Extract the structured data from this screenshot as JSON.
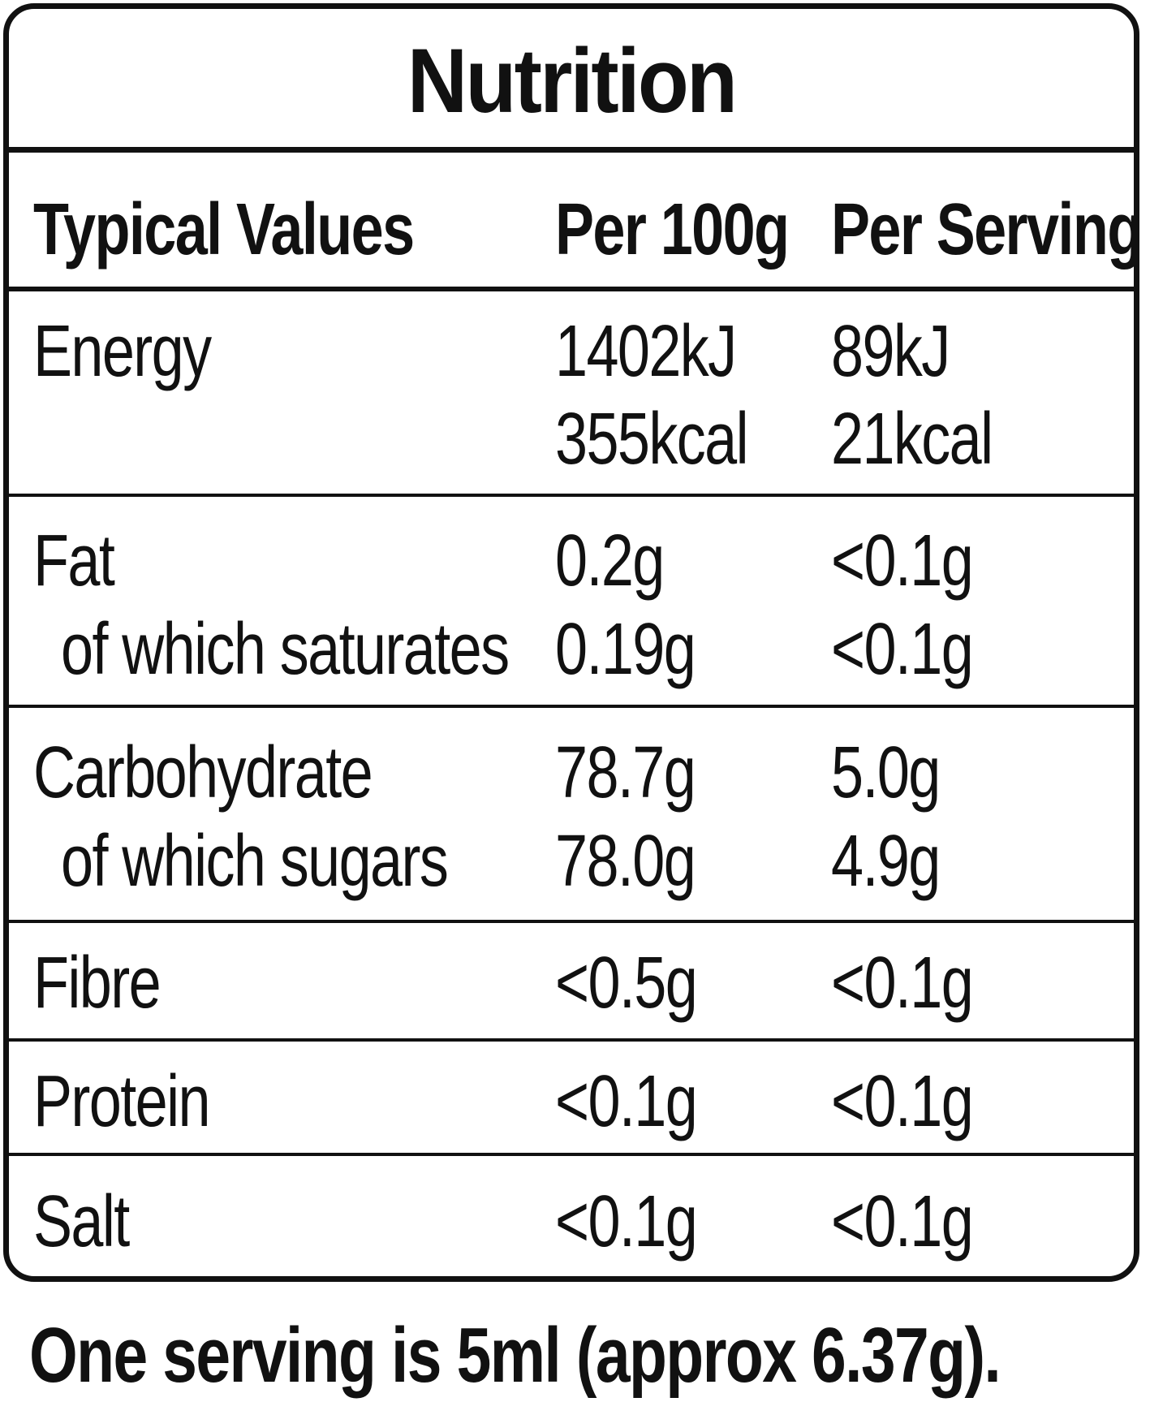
{
  "title": "Nutrition",
  "header": {
    "col1": "Typical Values",
    "col2": "Per 100g",
    "col3": "Per Serving"
  },
  "rows": [
    {
      "label": "Energy",
      "per100": "1402kJ",
      "perServing": "89kJ"
    },
    {
      "label": "",
      "per100": "355kcal",
      "perServing": "21kcal"
    },
    {
      "label": "Fat",
      "per100": "0.2g",
      "perServing": "<0.1g"
    },
    {
      "label": "of which saturates",
      "per100": "0.19g",
      "perServing": "<0.1g"
    },
    {
      "label": "Carbohydrate",
      "per100": "78.7g",
      "perServing": "5.0g"
    },
    {
      "label": "of which sugars",
      "per100": "78.0g",
      "perServing": "4.9g"
    },
    {
      "label": "Fibre",
      "per100": "<0.5g",
      "perServing": "<0.1g"
    },
    {
      "label": "Protein",
      "per100": "<0.1g",
      "perServing": "<0.1g"
    },
    {
      "label": "Salt",
      "per100": "<0.1g",
      "perServing": "<0.1g"
    }
  ],
  "footer": "One serving is 5ml (approx 6.37g)."
}
